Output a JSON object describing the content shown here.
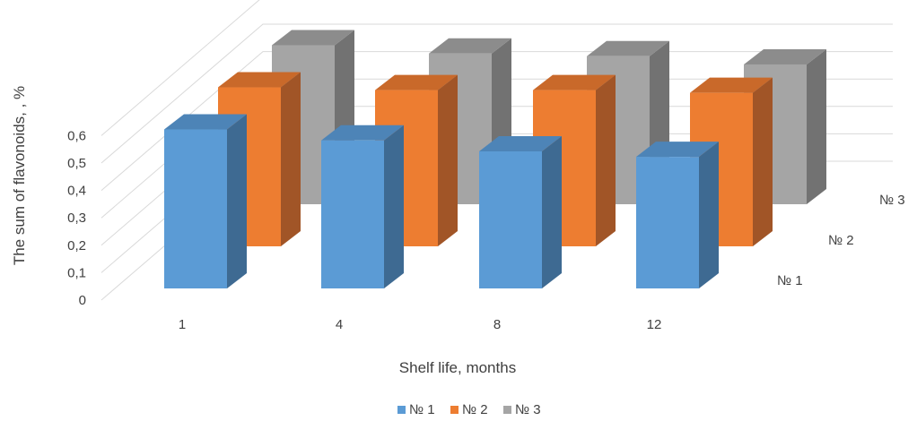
{
  "chart_data": {
    "type": "bar",
    "subtype": "3d-column",
    "categories": [
      "1",
      "4",
      "8",
      "12"
    ],
    "series": [
      {
        "name": "№ 1",
        "values": [
          0.58,
          0.54,
          0.5,
          0.48
        ]
      },
      {
        "name": "№ 2",
        "values": [
          0.58,
          0.57,
          0.57,
          0.56
        ]
      },
      {
        "name": "№ 3",
        "values": [
          0.58,
          0.55,
          0.54,
          0.51
        ]
      }
    ],
    "xlabel": "Shelf life, months",
    "ylabel": "The sum of flavonoids, , %",
    "yticks": [
      "0",
      "0,1",
      "0,2",
      "0,3",
      "0,4",
      "0,5",
      "0,6"
    ],
    "ylim": [
      0,
      0.6
    ],
    "depth_labels": [
      "№ 1",
      "№ 2",
      "№ 3"
    ],
    "grid": true,
    "legend": "bottom"
  },
  "colors": {
    "series": [
      "#5b9bd5",
      "#ed7d31",
      "#a5a5a5"
    ],
    "series_side": [
      "#3e6a92",
      "#a15527",
      "#727272"
    ],
    "series_top": [
      "#4d84b7",
      "#c9692a",
      "#8c8c8c"
    ],
    "gridline": "#d9d9d9",
    "text": "#404040"
  }
}
